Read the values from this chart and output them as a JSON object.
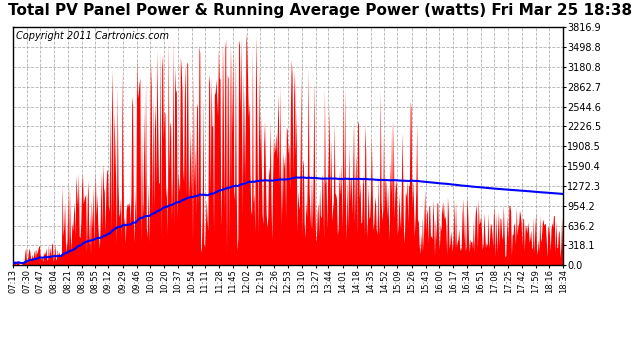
{
  "title": "Total PV Panel Power & Running Average Power (watts) Fri Mar 25 18:38",
  "copyright": "Copyright 2011 Cartronics.com",
  "y_max": 3816.9,
  "y_min": 0.0,
  "y_ticks": [
    0.0,
    318.1,
    636.2,
    954.2,
    1272.3,
    1590.4,
    1908.5,
    2226.5,
    2544.6,
    2862.7,
    3180.8,
    3498.8,
    3816.9
  ],
  "x_labels": [
    "07:13",
    "07:30",
    "07:47",
    "08:04",
    "08:21",
    "08:38",
    "08:55",
    "09:12",
    "09:29",
    "09:46",
    "10:03",
    "10:20",
    "10:37",
    "10:54",
    "11:11",
    "11:28",
    "11:45",
    "12:02",
    "12:19",
    "12:36",
    "12:53",
    "13:10",
    "13:27",
    "13:44",
    "14:01",
    "14:18",
    "14:35",
    "14:52",
    "15:09",
    "15:26",
    "15:43",
    "16:00",
    "16:17",
    "16:34",
    "16:51",
    "17:08",
    "17:25",
    "17:42",
    "17:59",
    "18:16",
    "18:34"
  ],
  "background_color": "#ffffff",
  "fill_color": "#ff0000",
  "line_color": "#0000ff",
  "grid_color": "#aaaaaa",
  "title_fontsize": 11,
  "copyright_fontsize": 7
}
